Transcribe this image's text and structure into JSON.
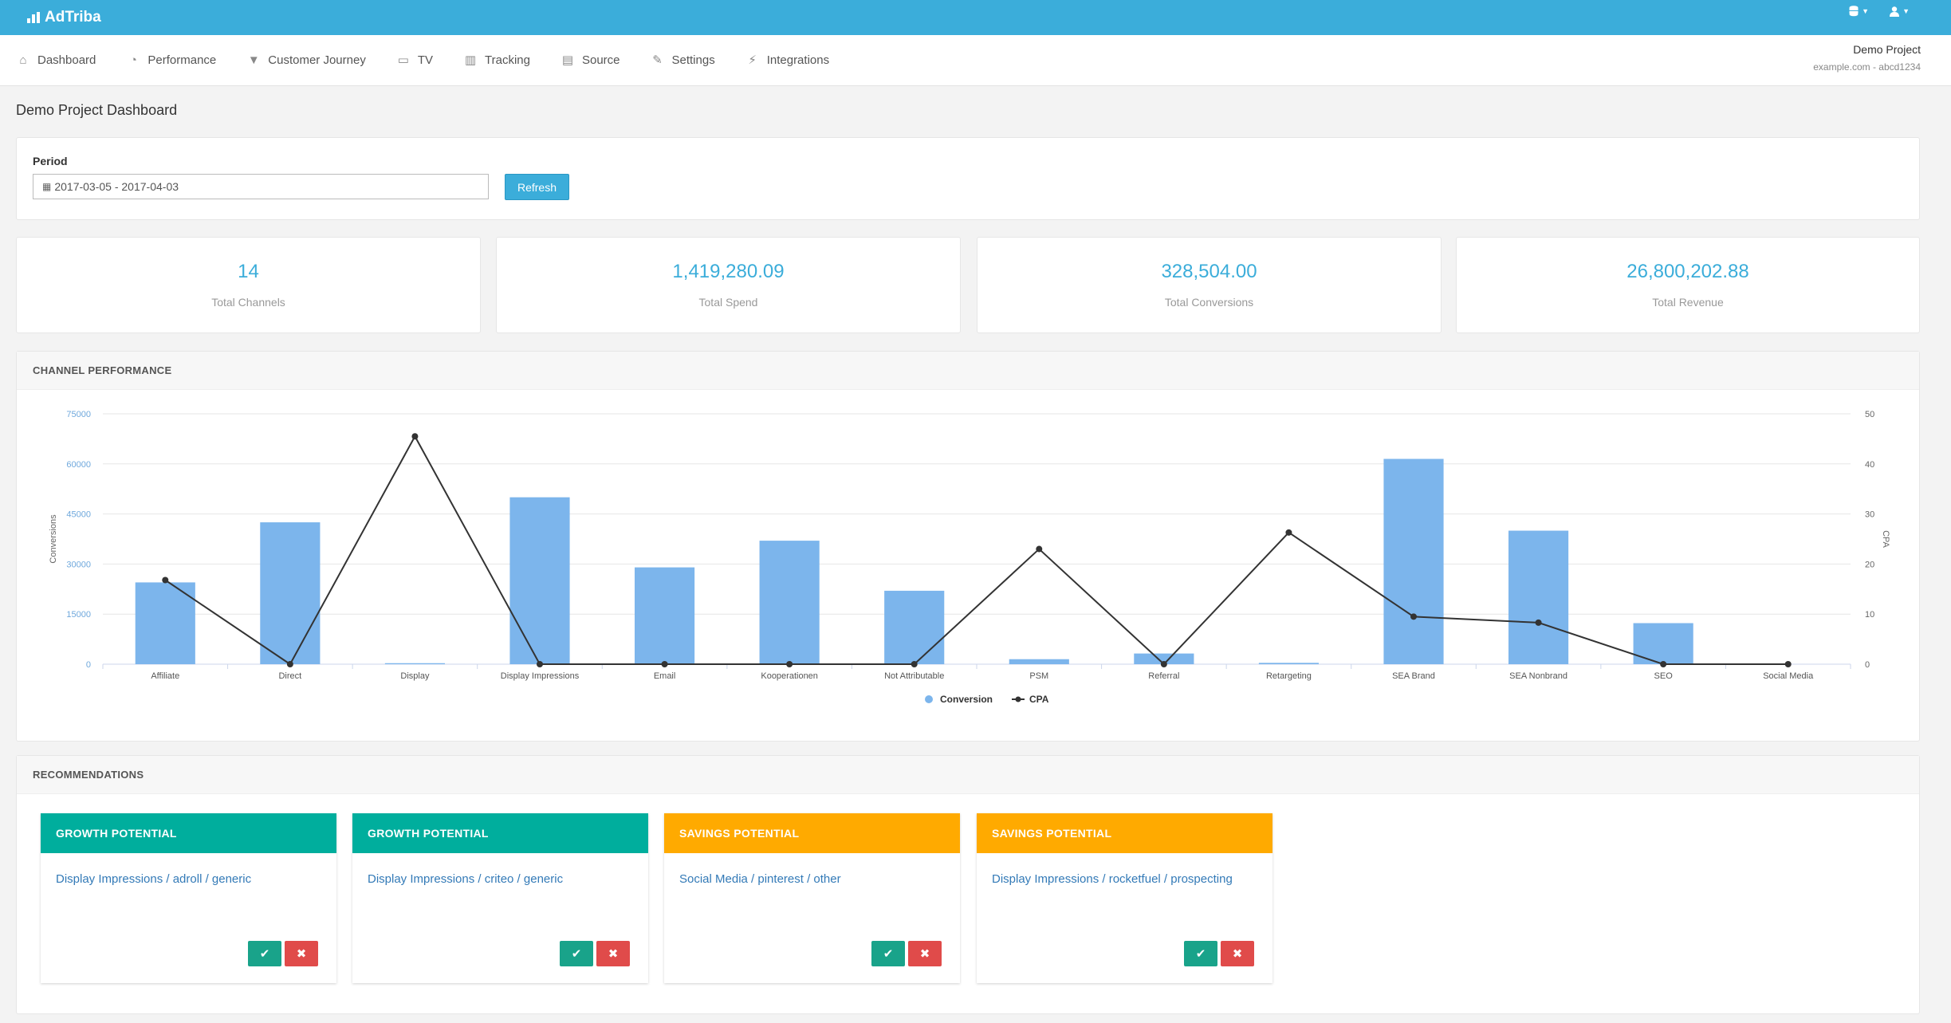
{
  "app": {
    "brand": "AdTriba",
    "brand_icon": "bar-chart-icon",
    "accent_color": "#3badda"
  },
  "top_right": {
    "database_icon": "database-icon",
    "user_icon": "user-icon"
  },
  "nav": [
    {
      "label": "Dashboard",
      "icon": "home-icon",
      "glyph": "⌂"
    },
    {
      "label": "Performance",
      "icon": "dashboard-gauge-icon",
      "glyph": "◔"
    },
    {
      "label": "Customer Journey",
      "icon": "filter-icon",
      "glyph": "▼"
    },
    {
      "label": "TV",
      "icon": "tv-icon",
      "glyph": "▭"
    },
    {
      "label": "Tracking",
      "icon": "bar-chart-icon",
      "glyph": "▥"
    },
    {
      "label": "Source",
      "icon": "source-card-icon",
      "glyph": "▤"
    },
    {
      "label": "Settings",
      "icon": "wrench-icon",
      "glyph": "✎"
    },
    {
      "label": "Integrations",
      "icon": "plug-icon",
      "glyph": "⚡"
    }
  ],
  "project": {
    "name": "Demo Project",
    "subtitle": "example.com - abcd1234"
  },
  "page_title": "Demo Project Dashboard",
  "period": {
    "label": "Period",
    "value": "2017-03-05 - 2017-04-03",
    "calendar_icon": "calendar-icon",
    "refresh_label": "Refresh"
  },
  "stats": [
    {
      "value": "14",
      "label": "Total Channels"
    },
    {
      "value": "1,419,280.09",
      "label": "Total Spend"
    },
    {
      "value": "328,504.00",
      "label": "Total Conversions"
    },
    {
      "value": "26,800,202.88",
      "label": "Total Revenue"
    }
  ],
  "channel_performance": {
    "title": "CHANNEL PERFORMANCE"
  },
  "chart_data": {
    "type": "bar",
    "categories": [
      "Affiliate",
      "Direct",
      "Display",
      "Display Impressions",
      "Email",
      "Kooperationen",
      "Not Attributable",
      "PSM",
      "Referral",
      "Retargeting",
      "SEA Brand",
      "SEA Nonbrand",
      "SEO",
      "Social Media"
    ],
    "series": [
      {
        "name": "Conversion",
        "type": "bar",
        "axis": "left",
        "color": "#7cb5ec",
        "values": [
          24500,
          42500,
          300,
          50000,
          29000,
          37000,
          22000,
          1500,
          3200,
          400,
          61500,
          40000,
          12300,
          0
        ]
      },
      {
        "name": "CPA",
        "type": "line",
        "axis": "right",
        "color": "#333333",
        "values": [
          16.8,
          0,
          45.5,
          0,
          0,
          0,
          0,
          23,
          0,
          26.3,
          9.5,
          8.3,
          0,
          0
        ]
      }
    ],
    "ylabel": "Conversions",
    "y2label": "CPA",
    "ylim": [
      0,
      75000
    ],
    "y2lim": [
      0,
      50
    ],
    "yticks": [
      0,
      15000,
      30000,
      45000,
      60000,
      75000
    ],
    "y2ticks": [
      0,
      10,
      20,
      30,
      40,
      50
    ],
    "grid": true,
    "legend": "bottom-center"
  },
  "recommendations": {
    "title": "RECOMMENDATIONS",
    "items": [
      {
        "type": "GROWTH POTENTIAL",
        "color": "#00ae9d",
        "link": "Display Impressions / adroll / generic"
      },
      {
        "type": "GROWTH POTENTIAL",
        "color": "#00ae9d",
        "link": "Display Impressions / criteo / generic"
      },
      {
        "type": "SAVINGS POTENTIAL",
        "color": "#ffaa00",
        "link": "Social Media / pinterest / other"
      },
      {
        "type": "SAVINGS POTENTIAL",
        "color": "#ffaa00",
        "link": "Display Impressions / rocketfuel / prospecting"
      }
    ],
    "accept_icon": "check-icon",
    "reject_icon": "close-icon"
  }
}
